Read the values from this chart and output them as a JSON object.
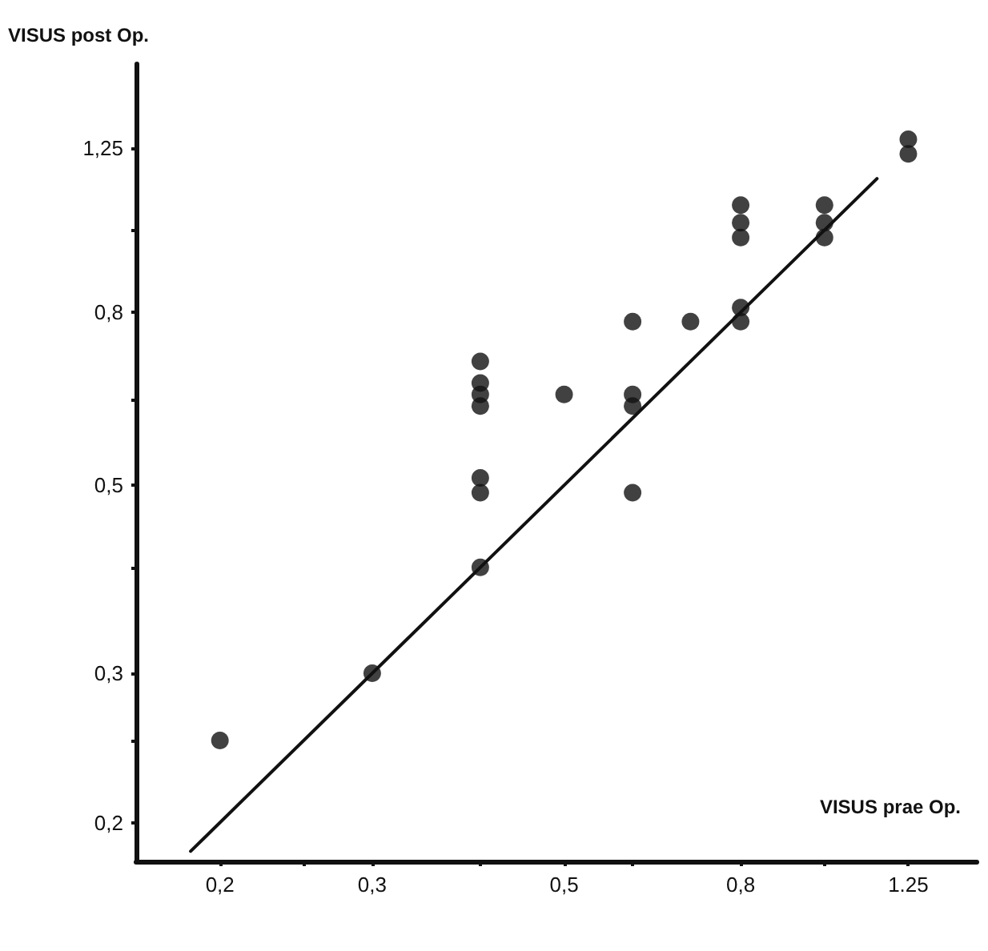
{
  "chart_data": {
    "type": "scatter",
    "xlabel": "VISUS prae Op.",
    "ylabel": "VISUS post Op.",
    "log": "xy",
    "marker": "circle",
    "grid": false,
    "xlim": [
      0.16,
      1.5
    ],
    "ylim": [
      0.18,
      1.57
    ],
    "xticks": [
      {
        "value": 0.2,
        "label": "0,2"
      },
      {
        "value": 0.25,
        "label": null
      },
      {
        "value": 0.3,
        "label": "0,3"
      },
      {
        "value": 0.4,
        "label": null
      },
      {
        "value": 0.5,
        "label": "0,5"
      },
      {
        "value": 0.6,
        "label": null
      },
      {
        "value": 0.8,
        "label": "0,8"
      },
      {
        "value": 1.0,
        "label": null
      },
      {
        "value": 1.25,
        "label": "1.25"
      }
    ],
    "yticks": [
      {
        "value": 0.2,
        "label": "0,2"
      },
      {
        "value": 0.25,
        "label": null
      },
      {
        "value": 0.3,
        "label": "0,3"
      },
      {
        "value": 0.4,
        "label": null
      },
      {
        "value": 0.5,
        "label": "0,5"
      },
      {
        "value": 0.63,
        "label": null
      },
      {
        "value": 0.8,
        "label": "0,8"
      },
      {
        "value": 1.0,
        "label": null
      },
      {
        "value": 1.25,
        "label": "1,25"
      }
    ],
    "series": [
      {
        "color": "#111111",
        "x": [
          0.2,
          0.3,
          0.4,
          0.4,
          0.4,
          0.4,
          0.4,
          0.4,
          0.4,
          0.5,
          0.6,
          0.6,
          0.6,
          0.6,
          0.7,
          0.8,
          0.8,
          0.8,
          0.8,
          0.8,
          1.0,
          1.0,
          1.0,
          1.25,
          1.25
        ],
        "values": [
          0.25,
          0.3,
          0.4,
          0.49,
          0.51,
          0.62,
          0.64,
          0.66,
          0.7,
          0.64,
          0.49,
          0.62,
          0.64,
          0.78,
          0.78,
          1.07,
          1.02,
          0.98,
          0.81,
          0.78,
          1.07,
          1.02,
          0.98,
          1.28,
          1.23
        ]
      },
      {
        "type": "line",
        "color": "#111111",
        "marker": "none",
        "x": [
          0.185,
          1.15
        ],
        "values": [
          0.185,
          1.15
        ]
      }
    ]
  }
}
